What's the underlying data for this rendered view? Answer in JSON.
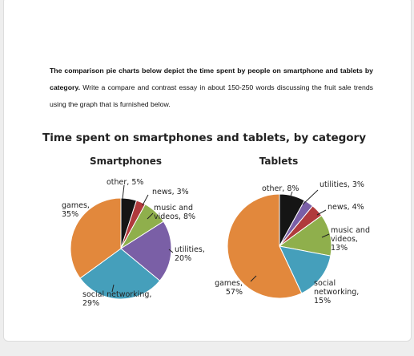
{
  "prompt": {
    "bold": "The comparison pie charts below depict the time spent by people on smartphone and tablets by category.",
    "text": "Write a compare and contrast essay in about 150-250 words discussing the fruit sale trends using the graph that is furnished below."
  },
  "figure_title": "Time spent on smartphones and tablets, by category",
  "chart_data": [
    {
      "type": "pie",
      "title": "Smartphones",
      "values": [
        5,
        3,
        8,
        20,
        29,
        35
      ],
      "value_labels": [
        [
          "other, 5%"
        ],
        [
          "news, 3%"
        ],
        [
          "music and",
          "videos, 8%"
        ],
        [
          "utilities,",
          "20%"
        ],
        [
          "social networking,",
          "29%"
        ],
        [
          "games,",
          "35%"
        ]
      ],
      "colors": [
        "#151515",
        "#b03a3c",
        "#8faf4c",
        "#7a5fa6",
        "#459fbb",
        "#e2883c"
      ]
    },
    {
      "type": "pie",
      "title": "Tablets",
      "values": [
        8,
        3,
        4,
        13,
        15,
        57
      ],
      "value_labels": [
        [
          "other, 8%"
        ],
        [
          "utilities, 3%"
        ],
        [
          "news, 4%"
        ],
        [
          "music and",
          "videos,",
          "13%"
        ],
        [
          "social",
          "networking,",
          "15%"
        ],
        [
          "games,",
          "57%"
        ]
      ],
      "colors": [
        "#151515",
        "#7a5fa6",
        "#b03a3c",
        "#8faf4c",
        "#459fbb",
        "#e2883c"
      ]
    }
  ]
}
